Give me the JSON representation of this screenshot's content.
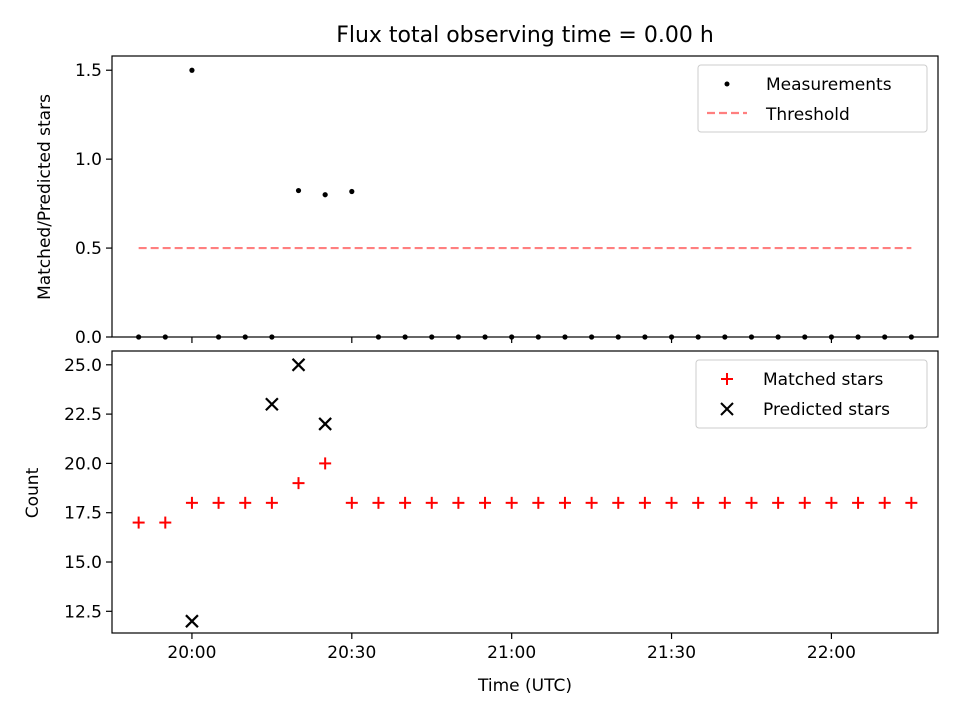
{
  "title": "Flux total observing time = 0.00 h",
  "colors": {
    "measurement": "#000000",
    "threshold": "#ff7f7f",
    "matched": "#ff0000",
    "predicted": "#000000"
  },
  "chart_data": [
    {
      "type": "scatter",
      "panel": "top",
      "ylabel": "Matched/Predicted stars",
      "xlabel": "",
      "x_axis_type": "time",
      "xlim": [
        "19:45",
        "22:20"
      ],
      "ylim": [
        0,
        1.58
      ],
      "yticks": [
        0.0,
        0.5,
        1.0,
        1.5
      ],
      "ytick_labels": [
        "0.0",
        "0.5",
        "1.0",
        "1.5"
      ],
      "legend_position": "top-right",
      "x": [
        "19:50",
        "19:55",
        "20:00",
        "20:05",
        "20:10",
        "20:15",
        "20:20",
        "20:25",
        "20:30",
        "20:35",
        "20:40",
        "20:45",
        "20:50",
        "20:55",
        "21:00",
        "21:05",
        "21:10",
        "21:15",
        "21:20",
        "21:25",
        "21:30",
        "21:35",
        "21:40",
        "21:45",
        "21:50",
        "21:55",
        "22:00",
        "22:05",
        "22:10",
        "22:15"
      ],
      "series": [
        {
          "name": "Measurements",
          "marker": "dot",
          "values": [
            0,
            0,
            1.5,
            0,
            0,
            0,
            0.8235,
            0.8,
            0.8182,
            0,
            0,
            0,
            0,
            0,
            0,
            0,
            0,
            0,
            0,
            0,
            0,
            0,
            0,
            0,
            0,
            0,
            0,
            0,
            0,
            0
          ]
        },
        {
          "name": "Threshold",
          "line": "dashed",
          "x": [
            "19:50",
            "22:15"
          ],
          "values": [
            0.5,
            0.5
          ]
        }
      ]
    },
    {
      "type": "scatter",
      "panel": "bottom",
      "ylabel": "Count",
      "xlabel": "Time (UTC)",
      "x_axis_type": "time",
      "xlim": [
        "19:45",
        "22:20"
      ],
      "ylim": [
        11.4,
        25.7
      ],
      "yticks": [
        12.5,
        15.0,
        17.5,
        20.0,
        22.5,
        25.0
      ],
      "ytick_labels": [
        "12.5",
        "15.0",
        "17.5",
        "20.0",
        "22.5",
        "25.0"
      ],
      "xticks": [
        "20:00",
        "20:30",
        "21:00",
        "21:30",
        "22:00"
      ],
      "xtick_labels": [
        "20:00",
        "20:30",
        "21:00",
        "21:30",
        "22:00"
      ],
      "legend_position": "top-right",
      "series": [
        {
          "name": "Matched stars",
          "marker": "plus",
          "x": [
            "19:50",
            "19:55",
            "20:00",
            "20:05",
            "20:10",
            "20:15",
            "20:20",
            "20:25",
            "20:30",
            "20:35",
            "20:40",
            "20:45",
            "20:50",
            "20:55",
            "21:00",
            "21:05",
            "21:10",
            "21:15",
            "21:20",
            "21:25",
            "21:30",
            "21:35",
            "21:40",
            "21:45",
            "21:50",
            "21:55",
            "22:00",
            "22:05",
            "22:10",
            "22:15"
          ],
          "values": [
            17,
            17,
            18,
            18,
            18,
            18,
            19,
            20,
            18,
            18,
            18,
            18,
            18,
            18,
            18,
            18,
            18,
            18,
            18,
            18,
            18,
            18,
            18,
            18,
            18,
            18,
            18,
            18,
            18,
            18
          ]
        },
        {
          "name": "Predicted stars",
          "marker": "x",
          "x": [
            "20:00",
            "20:15",
            "20:20",
            "20:25"
          ],
          "values": [
            12,
            23,
            25,
            22
          ]
        }
      ]
    }
  ]
}
